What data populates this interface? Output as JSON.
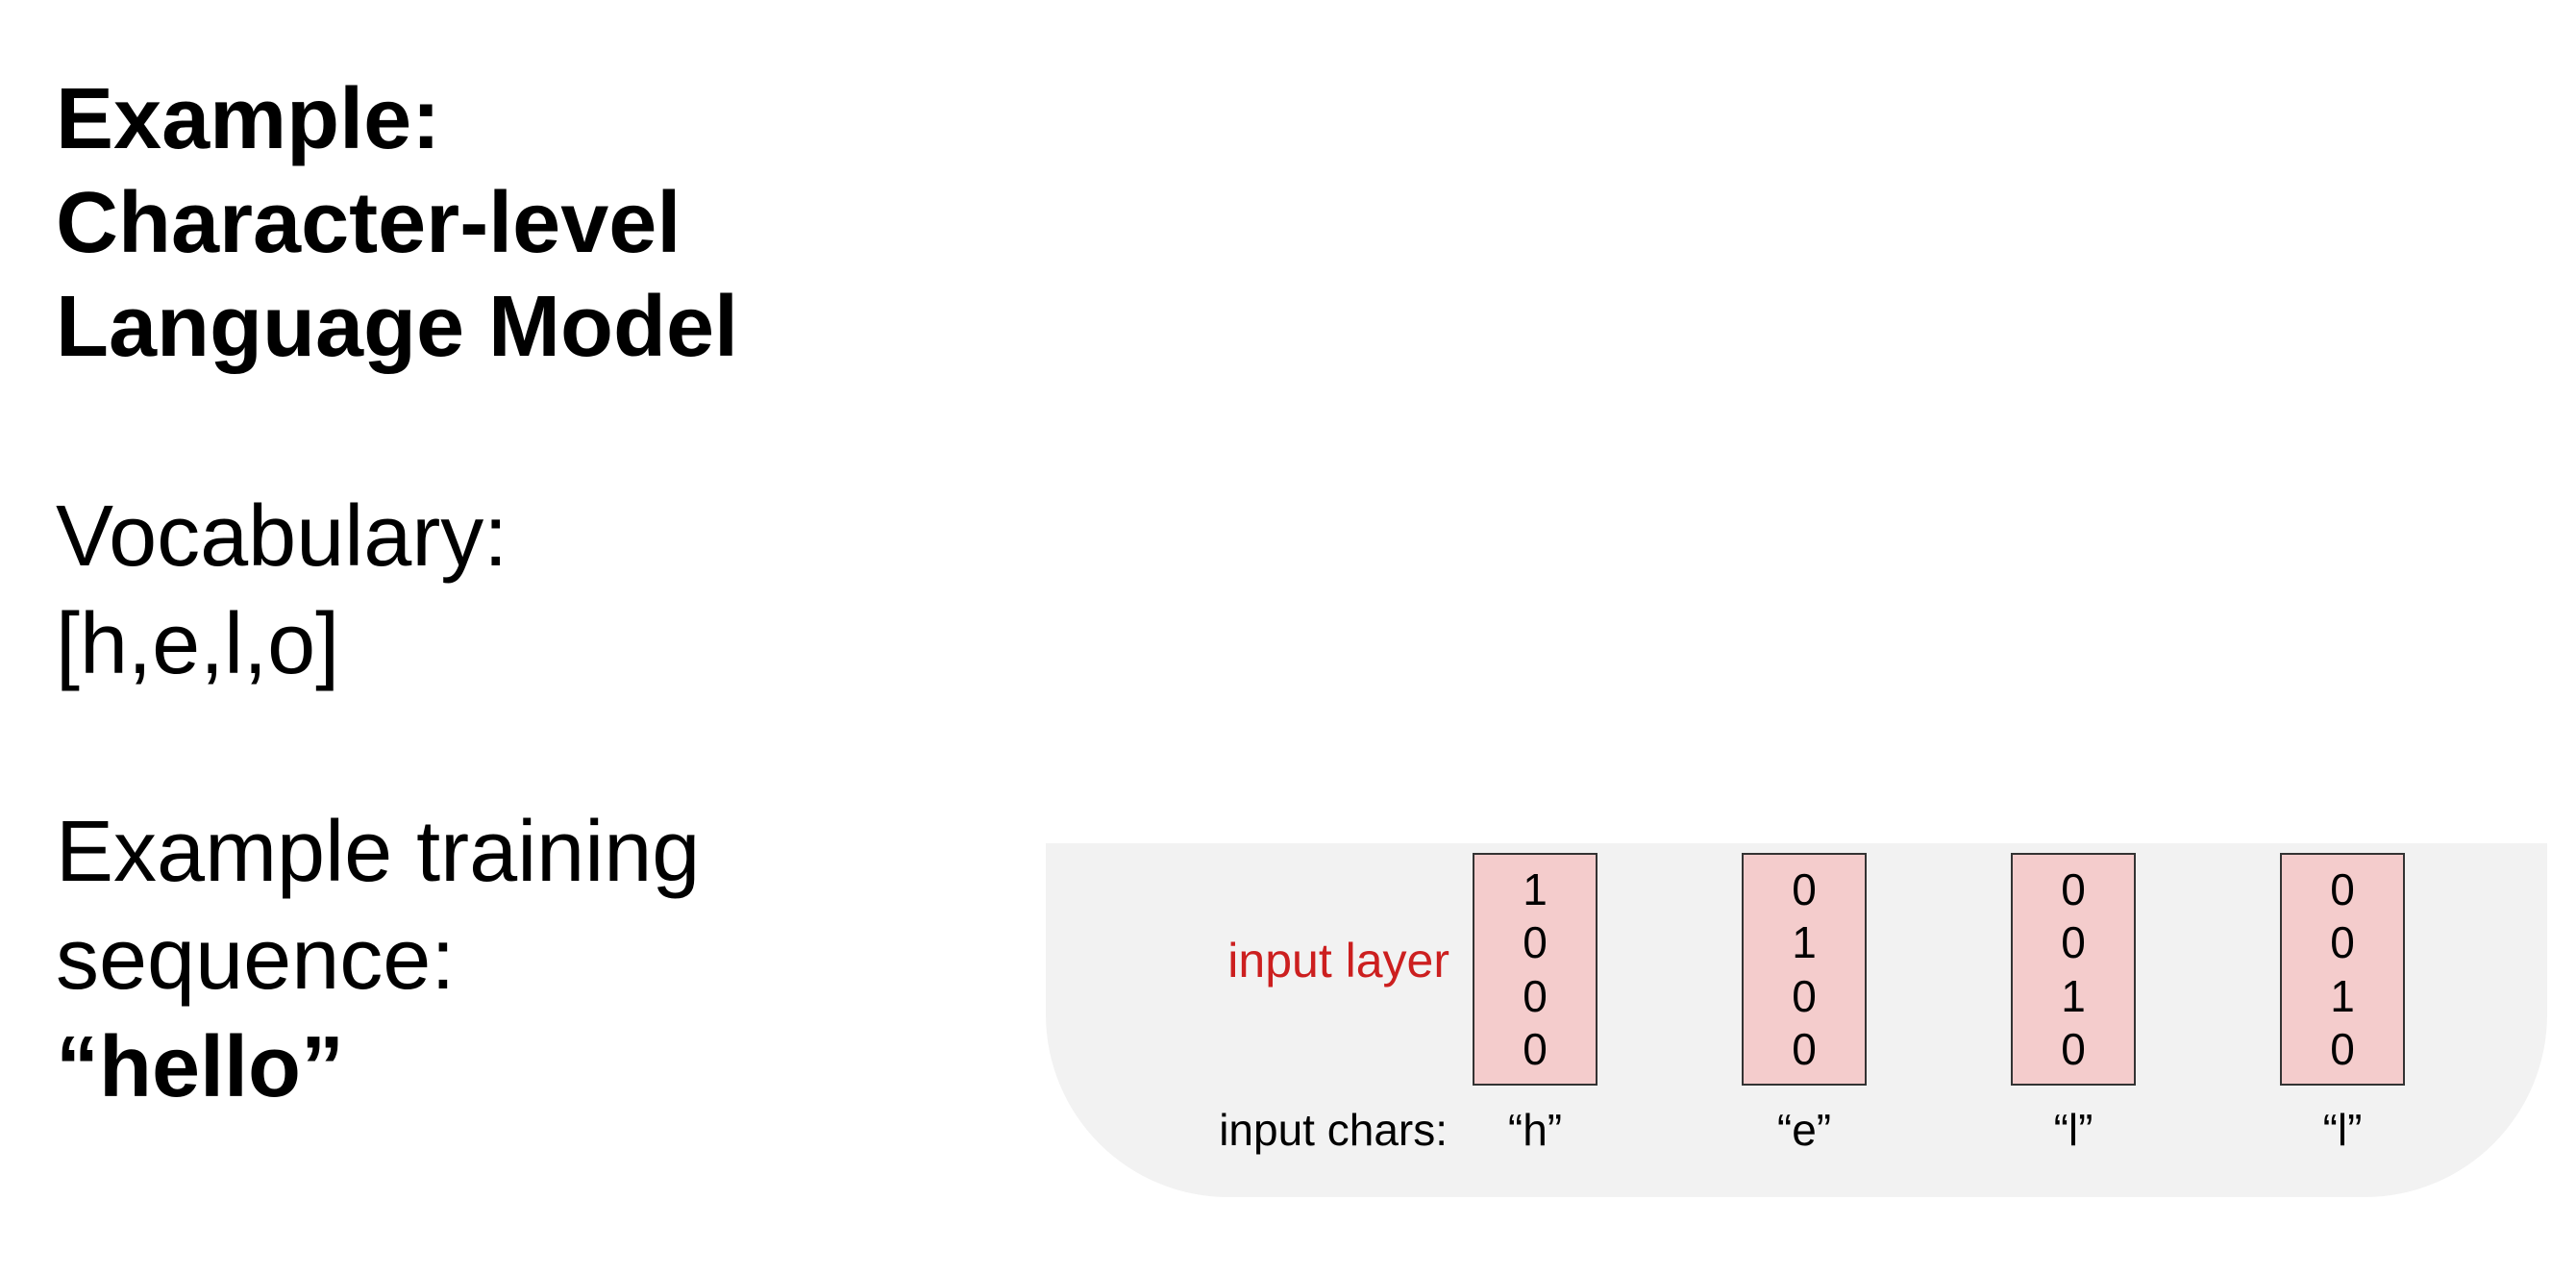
{
  "title": {
    "line1": "Example:",
    "line2": "Character-level",
    "line3": "Language Model"
  },
  "vocabulary": {
    "label": "Vocabulary:",
    "value": "[h,e,l,o]"
  },
  "training": {
    "line1": "Example training",
    "line2": "sequence:",
    "sequence": "“hello”"
  },
  "diagram": {
    "input_layer_label": "input layer",
    "input_chars_label": "input chars:",
    "columns": [
      {
        "char": "“h”",
        "vector": [
          "1",
          "0",
          "0",
          "0"
        ]
      },
      {
        "char": "“e”",
        "vector": [
          "0",
          "1",
          "0",
          "0"
        ]
      },
      {
        "char": "“l”",
        "vector": [
          "0",
          "0",
          "1",
          "0"
        ]
      },
      {
        "char": "“l”",
        "vector": [
          "0",
          "0",
          "1",
          "0"
        ]
      }
    ],
    "colors": {
      "panel_background": "#f2f2f2",
      "vector_fill": "#f4cccc",
      "vector_border": "#333333",
      "input_layer_label": "#cc1f1f"
    }
  }
}
